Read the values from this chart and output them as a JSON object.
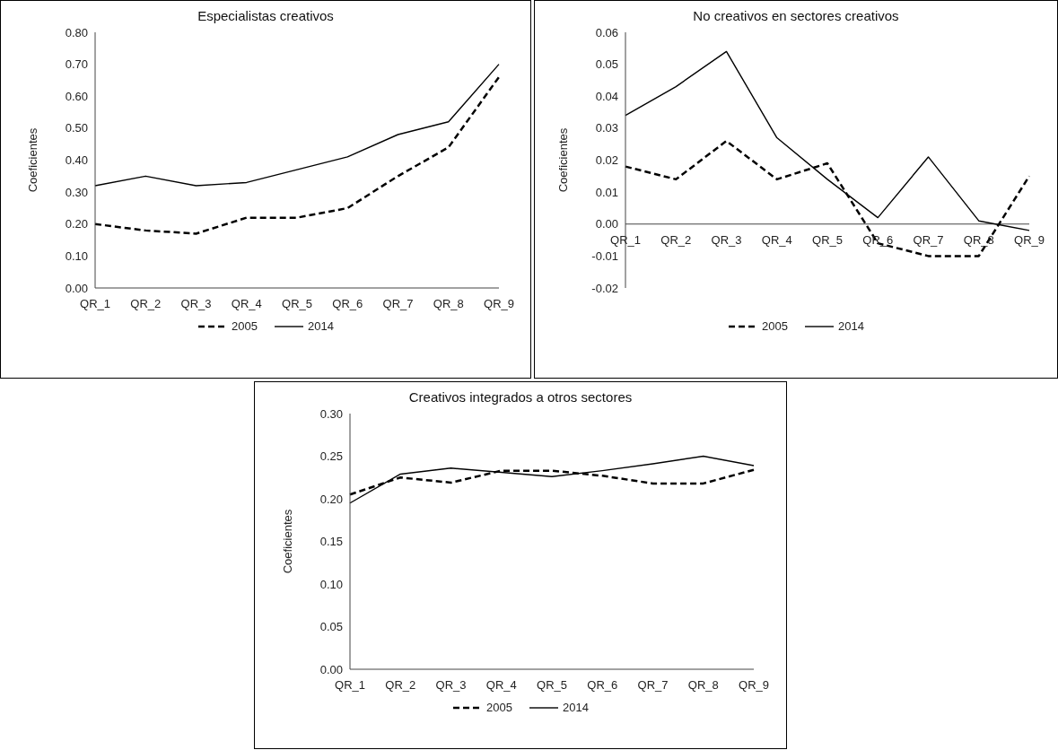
{
  "chart_data": [
    {
      "type": "line",
      "title": "Especialistas creativos",
      "ylabel": "Coeficientes",
      "categories": [
        "QR_1",
        "QR_2",
        "QR_3",
        "QR_4",
        "QR_5",
        "QR_6",
        "QR_7",
        "QR_8",
        "QR_9"
      ],
      "series": [
        {
          "name": "2005",
          "color": "#000000",
          "line_style": "dashed",
          "values": [
            0.2,
            0.18,
            0.17,
            0.22,
            0.22,
            0.25,
            0.35,
            0.44,
            0.66
          ]
        },
        {
          "name": "2014",
          "color": "#000000",
          "line_style": "solid",
          "values": [
            0.32,
            0.35,
            0.32,
            0.33,
            0.37,
            0.41,
            0.48,
            0.52,
            0.7
          ]
        }
      ],
      "ylim": [
        0,
        0.8
      ],
      "yticks": [
        {
          "value": 0,
          "label": "0.00"
        },
        {
          "value": 0.1,
          "label": "0.10"
        },
        {
          "value": 0.2,
          "label": "0.20"
        },
        {
          "value": 0.3,
          "label": "0.30"
        },
        {
          "value": 0.4,
          "label": "0.40"
        },
        {
          "value": 0.5,
          "label": "0.50"
        },
        {
          "value": 0.6,
          "label": "0.60"
        },
        {
          "value": 0.7,
          "label": "0.70"
        },
        {
          "value": 0.8,
          "label": "0.80"
        }
      ],
      "grid": false,
      "legend": "bottom",
      "marker": "none"
    },
    {
      "type": "line",
      "title": "No creativos en sectores creativos",
      "ylabel": "Coeficientes",
      "categories": [
        "QR_1",
        "QR_2",
        "QR_3",
        "QR_4",
        "QR_5",
        "QR_6",
        "QR_7",
        "QR_8",
        "QR_9"
      ],
      "series": [
        {
          "name": "2005",
          "color": "#000000",
          "line_style": "dashed",
          "values": [
            0.018,
            0.014,
            0.026,
            0.014,
            0.019,
            -0.006,
            -0.01,
            -0.01,
            0.015
          ]
        },
        {
          "name": "2014",
          "color": "#000000",
          "line_style": "solid",
          "values": [
            0.034,
            0.043,
            0.054,
            0.027,
            0.014,
            0.002,
            0.021,
            0.001,
            -0.002
          ]
        }
      ],
      "ylim": [
        -0.02,
        0.06
      ],
      "yticks": [
        {
          "value": -0.02,
          "label": "-0.02"
        },
        {
          "value": -0.01,
          "label": "-0.01"
        },
        {
          "value": 0,
          "label": "0.00"
        },
        {
          "value": 0.01,
          "label": "0.01"
        },
        {
          "value": 0.02,
          "label": "0.02"
        },
        {
          "value": 0.03,
          "label": "0.03"
        },
        {
          "value": 0.04,
          "label": "0.04"
        },
        {
          "value": 0.05,
          "label": "0.05"
        },
        {
          "value": 0.06,
          "label": "0.06"
        }
      ],
      "grid": false,
      "legend": "bottom",
      "marker": "none"
    },
    {
      "type": "line",
      "title": "Creativos integrados a otros sectores",
      "ylabel": "Coeficientes",
      "categories": [
        "QR_1",
        "QR_2",
        "QR_3",
        "QR_4",
        "QR_5",
        "QR_6",
        "QR_7",
        "QR_8",
        "QR_9"
      ],
      "series": [
        {
          "name": "2005",
          "color": "#000000",
          "line_style": "dashed",
          "values": [
            0.205,
            0.225,
            0.219,
            0.233,
            0.233,
            0.227,
            0.218,
            0.218,
            0.234
          ]
        },
        {
          "name": "2014",
          "color": "#000000",
          "line_style": "solid",
          "values": [
            0.195,
            0.229,
            0.236,
            0.231,
            0.226,
            0.233,
            0.241,
            0.25,
            0.239
          ]
        }
      ],
      "ylim": [
        0,
        0.3
      ],
      "yticks": [
        {
          "value": 0,
          "label": "0.00"
        },
        {
          "value": 0.05,
          "label": "0.05"
        },
        {
          "value": 0.1,
          "label": "0.10"
        },
        {
          "value": 0.15,
          "label": "0.15"
        },
        {
          "value": 0.2,
          "label": "0.20"
        },
        {
          "value": 0.25,
          "label": "0.25"
        },
        {
          "value": 0.3,
          "label": "0.30"
        }
      ],
      "grid": false,
      "legend": "bottom",
      "marker": "none"
    }
  ]
}
